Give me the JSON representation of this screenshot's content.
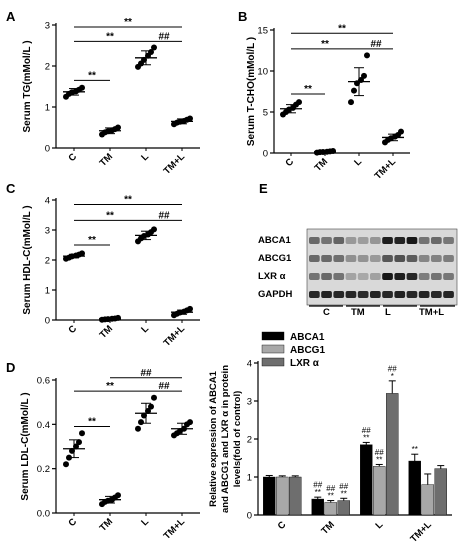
{
  "figure": {
    "panels": [
      "A",
      "B",
      "C",
      "D",
      "E"
    ]
  },
  "chart_data": [
    {
      "type": "scatter",
      "panel": "A",
      "ylabel": "Serum TG(mMol/L )",
      "categories": [
        "C",
        "TM",
        "L",
        "TM+L"
      ],
      "ylim": [
        0,
        3
      ],
      "yticks": [
        "0",
        "1",
        "2",
        "3"
      ],
      "series": [
        {
          "category": "C",
          "mean": 1.37,
          "sd": 0.08,
          "points": [
            1.25,
            1.32,
            1.36,
            1.38,
            1.42,
            1.47
          ]
        },
        {
          "category": "TM",
          "mean": 0.42,
          "sd": 0.07,
          "points": [
            0.33,
            0.38,
            0.41,
            0.43,
            0.46,
            0.5
          ]
        },
        {
          "category": "L",
          "mean": 2.2,
          "sd": 0.17,
          "points": [
            1.98,
            2.06,
            2.15,
            2.25,
            2.34,
            2.45
          ]
        },
        {
          "category": "TM+L",
          "mean": 0.65,
          "sd": 0.06,
          "points": [
            0.58,
            0.62,
            0.64,
            0.66,
            0.69,
            0.72
          ]
        }
      ],
      "annotations": [
        {
          "from": "C",
          "to": "TM",
          "label": "**",
          "y": 1.65
        },
        {
          "from": "C",
          "to": "L",
          "label": "**",
          "y": 2.6
        },
        {
          "from": "C",
          "to": "TM+L",
          "label": "**",
          "y": 2.95
        },
        {
          "from": "L",
          "to": "TM+L",
          "label": "##",
          "y": 2.6
        }
      ]
    },
    {
      "type": "scatter",
      "panel": "B",
      "ylabel": "Serum T-CHO(mMol/L )",
      "categories": [
        "C",
        "TM",
        "L",
        "TM+L"
      ],
      "ylim": [
        0,
        15
      ],
      "yticks": [
        "0",
        "5",
        "10",
        "15"
      ],
      "series": [
        {
          "category": "C",
          "mean": 5.4,
          "sd": 0.5,
          "points": [
            4.7,
            5.0,
            5.3,
            5.5,
            5.9,
            6.2
          ]
        },
        {
          "category": "TM",
          "mean": 0.15,
          "sd": 0.05,
          "points": [
            0.05,
            0.1,
            0.12,
            0.15,
            0.2,
            0.25
          ]
        },
        {
          "category": "L",
          "mean": 8.7,
          "sd": 1.7,
          "points": [
            6.2,
            7.6,
            8.5,
            8.9,
            9.4,
            11.9
          ]
        },
        {
          "category": "TM+L",
          "mean": 1.9,
          "sd": 0.4,
          "points": [
            1.3,
            1.6,
            1.8,
            2.0,
            2.2,
            2.6
          ]
        }
      ],
      "annotations": [
        {
          "from": "C",
          "to": "TM",
          "label": "**",
          "y": 7.2
        },
        {
          "from": "C",
          "to": "L",
          "label": "**",
          "y": 12.7
        },
        {
          "from": "C",
          "to": "TM+L",
          "label": "**",
          "y": 14.6
        },
        {
          "from": "L",
          "to": "TM+L",
          "label": "##",
          "y": 12.7
        }
      ]
    },
    {
      "type": "scatter",
      "panel": "C",
      "ylabel": "Serum HDL-C(mMol/L )",
      "categories": [
        "C",
        "TM",
        "L",
        "TM+L"
      ],
      "ylim": [
        0,
        4
      ],
      "yticks": [
        "0",
        "1",
        "2",
        "3",
        "4"
      ],
      "series": [
        {
          "category": "C",
          "mean": 2.13,
          "sd": 0.06,
          "points": [
            2.04,
            2.08,
            2.12,
            2.15,
            2.18,
            2.22
          ]
        },
        {
          "category": "TM",
          "mean": 0.04,
          "sd": 0.02,
          "points": [
            0.01,
            0.02,
            0.03,
            0.04,
            0.05,
            0.07
          ]
        },
        {
          "category": "L",
          "mean": 2.82,
          "sd": 0.14,
          "points": [
            2.62,
            2.72,
            2.8,
            2.85,
            2.93,
            3.02
          ]
        },
        {
          "category": "TM+L",
          "mean": 0.26,
          "sd": 0.07,
          "points": [
            0.16,
            0.21,
            0.25,
            0.28,
            0.32,
            0.37
          ]
        }
      ],
      "annotations": [
        {
          "from": "C",
          "to": "TM",
          "label": "**",
          "y": 2.5
        },
        {
          "from": "C",
          "to": "L",
          "label": "**",
          "y": 3.32
        },
        {
          "from": "C",
          "to": "TM+L",
          "label": "**",
          "y": 3.85
        },
        {
          "from": "L",
          "to": "TM+L",
          "label": "##",
          "y": 3.32
        }
      ]
    },
    {
      "type": "scatter",
      "panel": "D",
      "ylabel": "Serum LDL-C(mMol/L )",
      "categories": [
        "C",
        "TM",
        "L",
        "TM+L"
      ],
      "ylim": [
        0,
        0.6
      ],
      "yticks": [
        "0.0",
        "0.2",
        "0.4",
        "0.6"
      ],
      "series": [
        {
          "category": "C",
          "mean": 0.29,
          "sd": 0.04,
          "points": [
            0.22,
            0.25,
            0.28,
            0.3,
            0.32,
            0.36
          ]
        },
        {
          "category": "TM",
          "mean": 0.06,
          "sd": 0.015,
          "points": [
            0.04,
            0.05,
            0.055,
            0.06,
            0.07,
            0.08
          ]
        },
        {
          "category": "L",
          "mean": 0.45,
          "sd": 0.045,
          "points": [
            0.38,
            0.41,
            0.44,
            0.46,
            0.48,
            0.52
          ]
        },
        {
          "category": "TM+L",
          "mean": 0.38,
          "sd": 0.025,
          "points": [
            0.35,
            0.36,
            0.37,
            0.38,
            0.4,
            0.41
          ]
        }
      ],
      "annotations": [
        {
          "from": "C",
          "to": "TM",
          "label": "**",
          "y": 0.39
        },
        {
          "from": "C",
          "to": "L",
          "label": "**",
          "y": 0.55
        },
        {
          "from": "L",
          "to": "TM+L",
          "label": "##",
          "y": 0.55
        },
        {
          "from": "TM",
          "to": "TM+L",
          "label": "##",
          "y": 0.61
        }
      ]
    },
    {
      "type": "bar",
      "panel": "E",
      "ylabel": "Relative expression of ABCA1\nand ABCG1 and LXR α in protein\nlevels(fold of control)",
      "categories": [
        "C",
        "TM",
        "L",
        "TM+L"
      ],
      "ylim": [
        0,
        4
      ],
      "yticks": [
        "0",
        "1",
        "2",
        "3",
        "4"
      ],
      "legend": "top-left",
      "series": [
        {
          "name": "ABCA1",
          "color": "#000000",
          "values": [
            1.0,
            0.42,
            1.85,
            1.42
          ],
          "sd": [
            0.04,
            0.05,
            0.06,
            0.18
          ]
        },
        {
          "name": "ABCG1",
          "color": "#a8a8a8",
          "values": [
            1.0,
            0.33,
            1.28,
            0.8
          ],
          "sd": [
            0.03,
            0.05,
            0.05,
            0.28
          ]
        },
        {
          "name": "LXR α",
          "color": "#6e6e6e",
          "values": [
            1.0,
            0.38,
            3.2,
            1.22
          ],
          "sd": [
            0.03,
            0.06,
            0.33,
            0.08
          ]
        }
      ],
      "bar_labels": [
        {
          "category": "TM",
          "series": 0,
          "lines": [
            "##",
            "**"
          ]
        },
        {
          "category": "TM",
          "series": 1,
          "lines": [
            "##",
            "**"
          ]
        },
        {
          "category": "TM",
          "series": 2,
          "lines": [
            "##",
            "**"
          ]
        },
        {
          "category": "L",
          "series": 0,
          "lines": [
            "##",
            "**"
          ]
        },
        {
          "category": "L",
          "series": 1,
          "lines": [
            "##",
            "**"
          ]
        },
        {
          "category": "L",
          "series": 2,
          "lines": [
            "##",
            "*"
          ]
        },
        {
          "category": "TM+L",
          "series": 0,
          "lines": [
            "**"
          ]
        }
      ]
    }
  ],
  "blot": {
    "proteins": [
      "ABCA1",
      "ABCG1",
      "LXR α",
      "GAPDH"
    ],
    "groups": [
      "C",
      "TM",
      "L",
      "TM+L"
    ]
  }
}
